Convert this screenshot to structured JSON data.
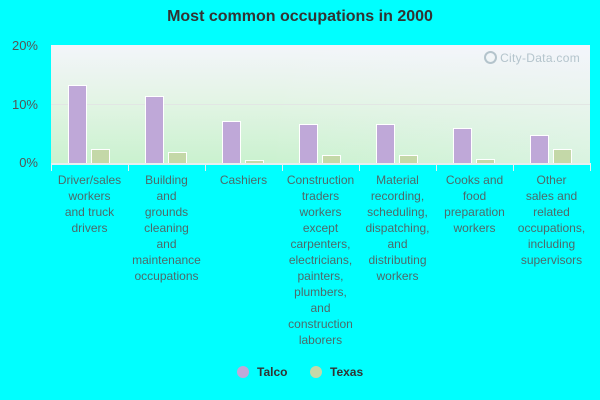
{
  "chart_data": {
    "type": "bar",
    "title": "Most common occupations in 2000",
    "xlabel": "",
    "ylabel": "",
    "ylim": [
      0,
      20
    ],
    "yticks": [
      "0%",
      "10%",
      "20%"
    ],
    "grid": true,
    "legend_position": "bottom",
    "categories": [
      "Driver/sales workers and truck drivers",
      "Building and grounds cleaning and maintenance occupations",
      "Cashiers",
      "Construction traders workers except carpenters, electricians, painters, plumbers, and construction laborers",
      "Material recording, scheduling, dispatching, and distributing workers",
      "Cooks and food preparation workers",
      "Other sales and related occupations, including supervisors"
    ],
    "series": [
      {
        "name": "Talco",
        "color": "#bfa8d8",
        "values": [
          13.3,
          11.4,
          7.1,
          6.6,
          6.6,
          5.9,
          4.7
        ]
      },
      {
        "name": "Texas",
        "color": "#c4d8a8",
        "values": [
          2.4,
          1.8,
          0.5,
          1.3,
          1.4,
          0.7,
          2.4
        ]
      }
    ]
  },
  "labels": {
    "title": "Most common occupations in 2000",
    "watermark": "City-Data.com",
    "yticks": [
      "20%",
      "10%",
      "0%"
    ],
    "xlabels": [
      [
        "Driver/sales",
        "workers",
        "and truck",
        "drivers"
      ],
      [
        "Building",
        "and",
        "grounds",
        "cleaning",
        "and",
        "maintenance",
        "occupations"
      ],
      [
        "Cashiers"
      ],
      [
        "Construction",
        "traders",
        "workers",
        "except",
        "carpenters,",
        "electricians,",
        "painters,",
        "plumbers,",
        "and",
        "construction",
        "laborers"
      ],
      [
        "Material",
        "recording,",
        "scheduling,",
        "dispatching,",
        "and",
        "distributing",
        "workers"
      ],
      [
        "Cooks and",
        "food",
        "preparation",
        "workers"
      ],
      [
        "Other",
        "sales and",
        "related",
        "occupations,",
        "including",
        "supervisors"
      ]
    ],
    "legend": [
      "Talco",
      "Texas"
    ]
  }
}
